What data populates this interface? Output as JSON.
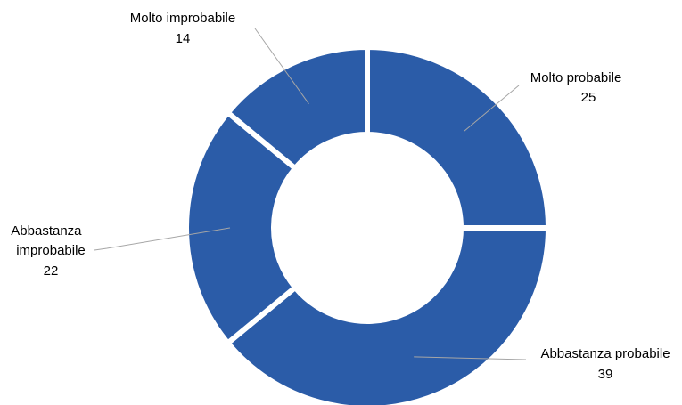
{
  "chart_data": {
    "type": "pie",
    "variant": "donut",
    "title": "",
    "slices": [
      {
        "label": "Molto probabile",
        "value": 25
      },
      {
        "label": "Abbastanza probabile",
        "value": 39
      },
      {
        "label": "Abbastanza improbabile",
        "value": 22
      },
      {
        "label": "Molto improbabile",
        "value": 14
      }
    ],
    "slice_color": "#2b5ca8",
    "legend": "none",
    "data_labels": "outside with leader lines"
  }
}
